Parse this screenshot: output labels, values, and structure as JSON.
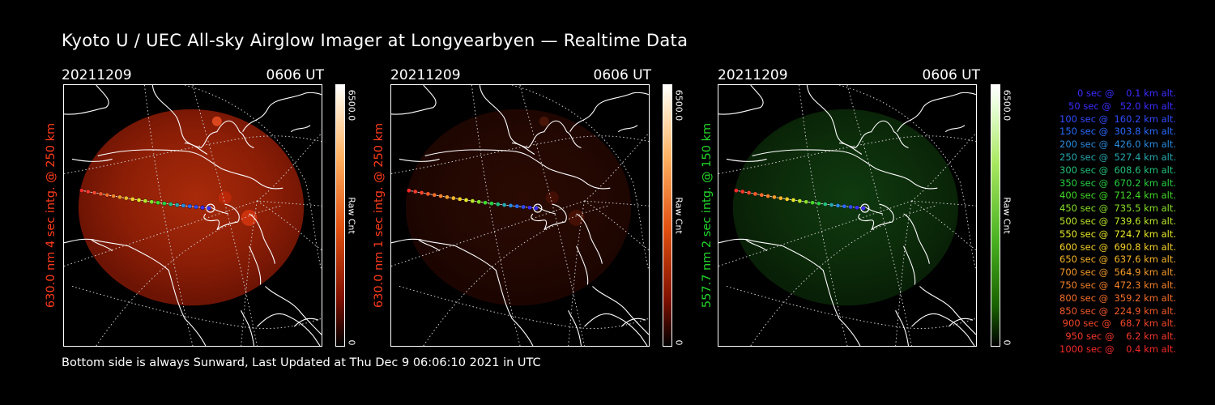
{
  "title": "Kyoto U / UEC All-sky Airglow Imager at Longyearbyen — Realtime Data",
  "footer": "Bottom side is always Sunward, Last Updated at Thu Dec  9 06:06:10 2021 in UTC",
  "colors": {
    "red": "#ff3b1c",
    "green": "#22d72a"
  },
  "panels": [
    {
      "date": "20211209",
      "time": "0606 UT",
      "label": "630.0 nm  4 sec intg. @ 250 km",
      "label_color": "#ff3b1c",
      "cbar_max": "6500.0",
      "cbar_unit": "Raw Cnt",
      "cbar_min": "0",
      "tint": "red",
      "brightness": 1.0
    },
    {
      "date": "20211209",
      "time": "0606 UT",
      "label": "630.0 nm  1 sec intg. @ 250 km",
      "label_color": "#ff3b1c",
      "cbar_max": "6500.0",
      "cbar_unit": "Raw Cnt",
      "cbar_min": "0",
      "tint": "red",
      "brightness": 0.25
    },
    {
      "date": "20211209",
      "time": "0606 UT",
      "label": "557.7 nm  2 sec intg. @ 150 km",
      "label_color": "#22d72a",
      "cbar_max": "6500.0",
      "cbar_unit": "Raw Cnt",
      "cbar_min": "0",
      "tint": "green",
      "brightness": 0.55
    }
  ],
  "legend": [
    {
      "text": "   0 sec @    0.1 km alt.",
      "color": "#3a2cff"
    },
    {
      "text": "  50 sec @   52.0 km alt.",
      "color": "#3a2cff"
    },
    {
      "text": " 100 sec @  160.2 km alt.",
      "color": "#2f4cff"
    },
    {
      "text": " 150 sec @  303.8 km alt.",
      "color": "#2a6aff"
    },
    {
      "text": " 200 sec @  426.0 km alt.",
      "color": "#2a8ce0"
    },
    {
      "text": " 250 sec @  527.4 km alt.",
      "color": "#28a8b0"
    },
    {
      "text": " 300 sec @  608.6 km alt.",
      "color": "#22c07a"
    },
    {
      "text": " 350 sec @  670.2 km alt.",
      "color": "#28d040"
    },
    {
      "text": " 400 sec @  712.4 km alt.",
      "color": "#44d82a"
    },
    {
      "text": " 450 sec @  735.5 km alt.",
      "color": "#86e02a"
    },
    {
      "text": " 500 sec @  739.6 km alt.",
      "color": "#bce82a"
    },
    {
      "text": " 550 sec @  724.7 km alt.",
      "color": "#e8e82a"
    },
    {
      "text": " 600 sec @  690.8 km alt.",
      "color": "#f5d02a"
    },
    {
      "text": " 650 sec @  637.6 km alt.",
      "color": "#f5b42a"
    },
    {
      "text": " 700 sec @  564.9 km alt.",
      "color": "#f59a2a"
    },
    {
      "text": " 750 sec @  472.3 km alt.",
      "color": "#f5822a"
    },
    {
      "text": " 800 sec @  359.2 km alt.",
      "color": "#f56e2a"
    },
    {
      "text": " 850 sec @  224.9 km alt.",
      "color": "#f55a2a"
    },
    {
      "text": " 900 sec @   68.7 km alt.",
      "color": "#f5462a"
    },
    {
      "text": " 950 sec @    6.2 km alt.",
      "color": "#f5382a"
    },
    {
      "text": "1000 sec @    0.4 km alt.",
      "color": "#f52a2a"
    }
  ]
}
